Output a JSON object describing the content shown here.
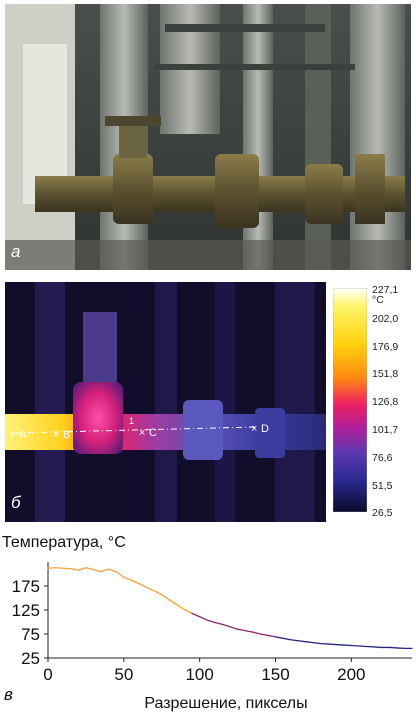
{
  "panels": {
    "a": {
      "letter": "а"
    },
    "b": {
      "letter": "б",
      "points": [
        "A",
        "B",
        "C",
        "D"
      ],
      "marker": "1",
      "scale": {
        "unit": "°C",
        "ticks": [
          "227,1",
          "202,0",
          "176,9",
          "151,8",
          "126,8",
          "101,7",
          "76,6",
          "51,5",
          "26,5"
        ]
      }
    },
    "c": {
      "letter": "в"
    }
  },
  "colors": {
    "line_hot": "#f2a33a",
    "line_mid": "#8a2a6e",
    "line_cold": "#26287a"
  },
  "chart_data": {
    "type": "line",
    "title": "Температура, °C",
    "xlabel": "Разрешение, пикселы",
    "ylabel": "",
    "xlim": [
      0,
      240
    ],
    "ylim": [
      25,
      225
    ],
    "xticks": [
      0,
      50,
      100,
      150,
      200
    ],
    "xtick_labels": [
      "0",
      "50",
      "100",
      "150",
      "200"
    ],
    "yticks": [
      25,
      75,
      125,
      175
    ],
    "ytick_labels": [
      "25",
      "75",
      "125",
      "175"
    ],
    "grid": false,
    "series": [
      {
        "x": [
          0,
          5,
          10,
          15,
          20,
          25,
          30,
          35,
          40,
          45,
          50,
          55,
          60,
          65,
          70,
          75,
          80,
          85,
          90,
          95,
          100,
          105,
          110,
          115,
          120,
          125,
          130,
          135,
          140,
          145,
          150,
          155,
          160,
          165,
          170,
          175,
          180,
          185,
          190,
          195,
          200,
          205,
          210,
          215,
          220,
          225,
          230,
          235,
          240
        ],
        "values": [
          212,
          213,
          212,
          211,
          208,
          213,
          209,
          205,
          210,
          205,
          193,
          187,
          180,
          172,
          165,
          157,
          146,
          136,
          126,
          118,
          111,
          104,
          99,
          95,
          90,
          85,
          82,
          79,
          75,
          72,
          69,
          66,
          63,
          61,
          59,
          57,
          55,
          54,
          53,
          52,
          51,
          50,
          49,
          48,
          47,
          47,
          46,
          45,
          45
        ]
      }
    ]
  }
}
